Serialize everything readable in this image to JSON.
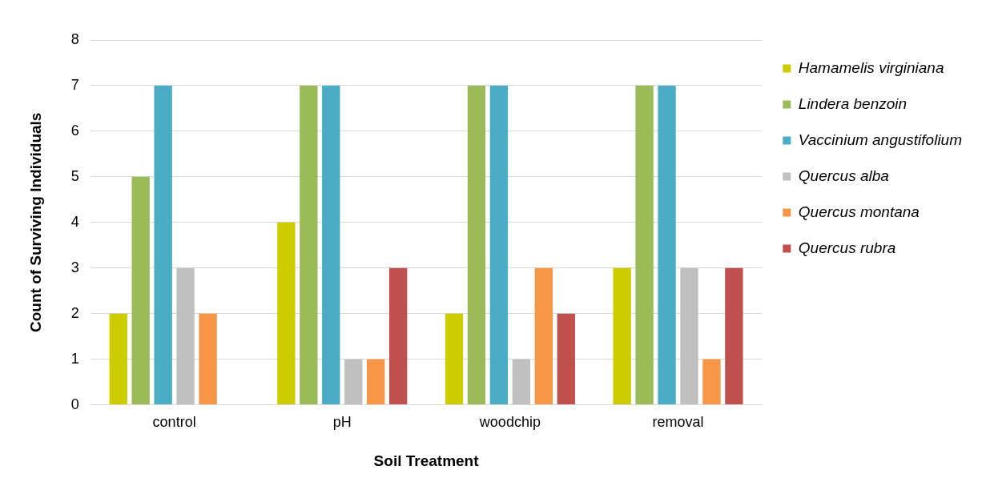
{
  "chart_data": {
    "type": "bar",
    "xlabel": "Soil Treatment",
    "ylabel": "Count of Surviving Individuals",
    "categories": [
      "control",
      "pH",
      "woodchip",
      "removal"
    ],
    "series": [
      {
        "name": "Hamamelis virginiana",
        "color": "#cccc00",
        "values": [
          2,
          4,
          2,
          3
        ]
      },
      {
        "name": "Lindera benzoin",
        "color": "#9bbb59",
        "values": [
          5,
          7,
          7,
          7
        ]
      },
      {
        "name": "Vaccinium angustifolium",
        "color": "#4bacc6",
        "values": [
          7,
          7,
          7,
          7
        ]
      },
      {
        "name": "Quercus alba",
        "color": "#c0c0c0",
        "values": [
          3,
          1,
          1,
          3
        ]
      },
      {
        "name": "Quercus montana",
        "color": "#f79646",
        "values": [
          2,
          1,
          3,
          1
        ]
      },
      {
        "name": "Quercus rubra",
        "color": "#c0504d",
        "values": [
          0,
          3,
          2,
          3
        ]
      }
    ],
    "ylim": [
      0,
      8
    ],
    "yticks": [
      0,
      1,
      2,
      3,
      4,
      5,
      6,
      7,
      8
    ],
    "grid": "y",
    "legend": "right"
  }
}
